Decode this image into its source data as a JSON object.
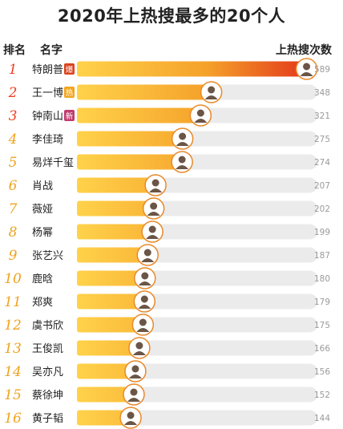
{
  "title": "2020年上热搜最多的20个人",
  "headers": {
    "rank": "排名",
    "name": "名字",
    "count": "上热搜次数"
  },
  "colors": {
    "track": "#ebebeb",
    "bar_start": "#ffd24a",
    "bar_end": "#e2311a",
    "rank_top3": "#ee3f1f",
    "rank_rest": "#f0a21e",
    "value_text": "#9a9a9a",
    "name_text": "#222222",
    "badge_bao": "#d9431c",
    "badge_re": "#f2a51e",
    "badge_xin": "#c03a6e"
  },
  "chart_data": {
    "type": "bar",
    "orientation": "horizontal",
    "categories": [
      "特朗普",
      "王一博",
      "钟南山",
      "李佳琦",
      "易烊千玺",
      "肖战",
      "薇娅",
      "杨幂",
      "张艺兴",
      "鹿晗",
      "郑爽",
      "虞书欣",
      "王俊凯",
      "吴亦凡",
      "蔡徐坤",
      "黄子韬"
    ],
    "ranks": [
      "1",
      "2",
      "3",
      "4",
      "5",
      "6",
      "7",
      "8",
      "9",
      "10",
      "11",
      "12",
      "13",
      "14",
      "15",
      "16"
    ],
    "values": [
      589,
      348,
      321,
      275,
      274,
      207,
      202,
      199,
      187,
      180,
      179,
      175,
      166,
      156,
      152,
      144
    ],
    "badges": [
      "爆",
      "热",
      "新",
      "",
      "",
      "",
      "",
      "",
      "",
      "",
      "",
      "",
      "",
      "",
      "",
      ""
    ],
    "xlim": [
      0,
      600
    ]
  }
}
